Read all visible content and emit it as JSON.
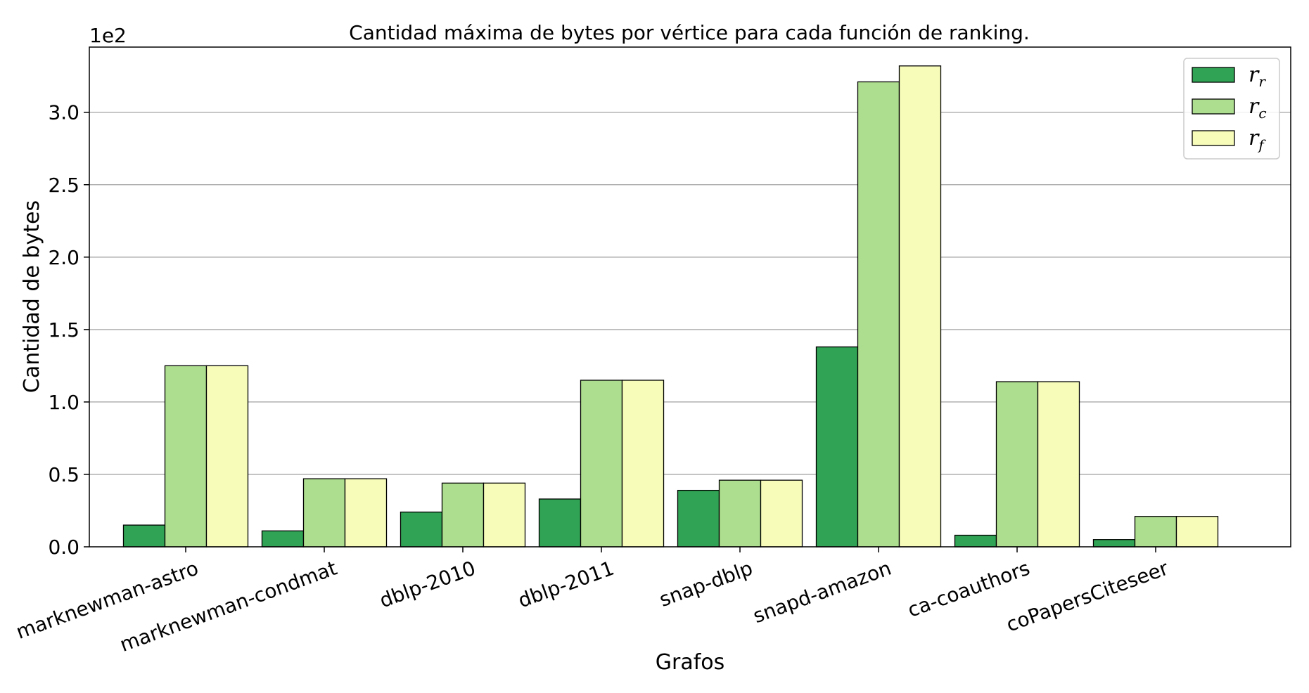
{
  "chart_data": {
    "type": "bar",
    "title": "Cantidad máxima de bytes por vértice para cada función de ranking.",
    "xlabel": "Grafos",
    "ylabel": "Cantidad de bytes",
    "y_offset_label": "1e2",
    "ylim": [
      0,
      3.45
    ],
    "yticks": [
      "0.0",
      "0.5",
      "1.0",
      "1.5",
      "2.0",
      "2.5",
      "3.0"
    ],
    "grid": "y",
    "legend_position": "top-right",
    "categories": [
      "marknewman-astro",
      "marknewman-condmat",
      "dblp-2010",
      "dblp-2011",
      "snap-dblp",
      "snapd-amazon",
      "ca-coauthors",
      "coPapersCiteseer"
    ],
    "series": [
      {
        "name": "r",
        "sub": "r",
        "color": "#31a354",
        "values": [
          0.15,
          0.11,
          0.24,
          0.33,
          0.39,
          1.38,
          0.08,
          0.05
        ]
      },
      {
        "name": "r",
        "sub": "c",
        "color": "#addd8e",
        "values": [
          1.25,
          0.47,
          0.44,
          1.15,
          0.46,
          3.21,
          1.14,
          0.21
        ]
      },
      {
        "name": "r",
        "sub": "f",
        "color": "#f7fcb9",
        "values": [
          1.25,
          0.47,
          0.44,
          1.15,
          0.46,
          3.32,
          1.14,
          0.21
        ]
      }
    ]
  }
}
